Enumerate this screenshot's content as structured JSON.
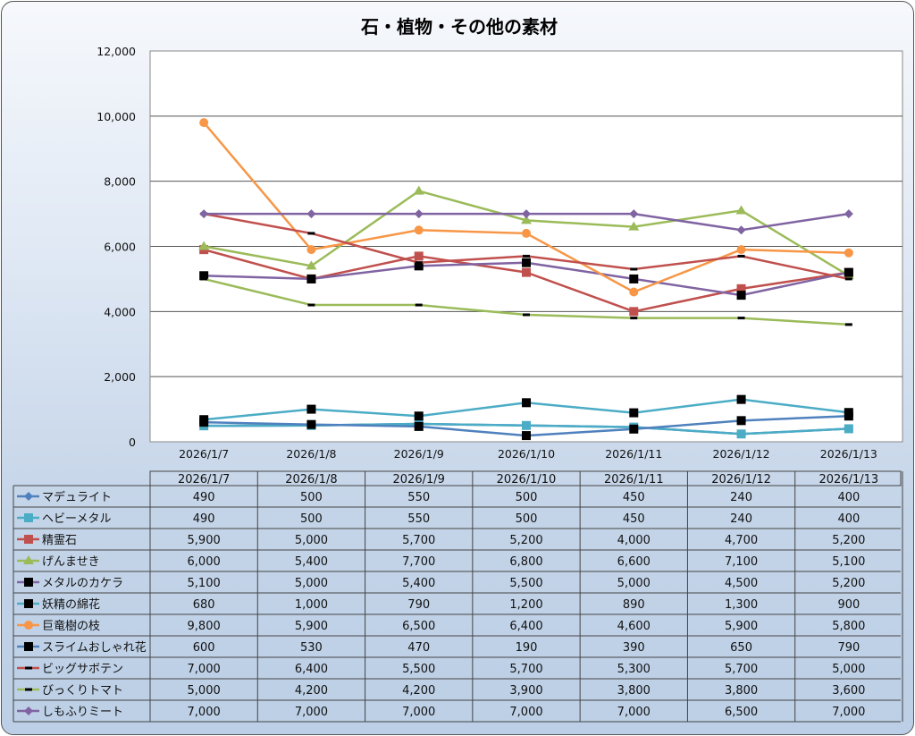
{
  "chart_data": {
    "type": "line",
    "title": "石・植物・その他の素材",
    "xlabel": "",
    "ylabel": "",
    "ylim": [
      0,
      12000
    ],
    "yticks": [
      "0",
      "2,000",
      "4,000",
      "6,000",
      "8,000",
      "10,000",
      "12,000"
    ],
    "ytick_values": [
      0,
      2000,
      4000,
      6000,
      8000,
      10000,
      12000
    ],
    "grid": true,
    "legend": "data-table-below",
    "categories": [
      "2026/1/7",
      "2026/1/8",
      "2026/1/9",
      "2026/1/10",
      "2026/1/11",
      "2026/1/12",
      "2026/1/13"
    ],
    "series": [
      {
        "name": "マデュライト",
        "color": "#4F81BD",
        "marker": "diamond",
        "values": [
          490,
          500,
          550,
          500,
          450,
          240,
          400
        ],
        "labels": [
          "490",
          "500",
          "550",
          "500",
          "450",
          "240",
          "400"
        ]
      },
      {
        "name": "ヘビーメタル",
        "color": "#4BACC6",
        "marker": "square",
        "values": [
          490,
          500,
          550,
          500,
          450,
          240,
          400
        ],
        "labels": [
          "490",
          "500",
          "550",
          "500",
          "450",
          "240",
          "400"
        ]
      },
      {
        "name": "精霊石",
        "color": "#C0504D",
        "marker": "square",
        "values": [
          5900,
          5000,
          5700,
          5200,
          4000,
          4700,
          5200
        ],
        "labels": [
          "5,900",
          "5,000",
          "5,700",
          "5,200",
          "4,000",
          "4,700",
          "5,200"
        ]
      },
      {
        "name": "げんませき",
        "color": "#9BBB59",
        "marker": "triangle",
        "values": [
          6000,
          5400,
          7700,
          6800,
          6600,
          7100,
          5100
        ],
        "labels": [
          "6,000",
          "5,400",
          "7,700",
          "6,800",
          "6,600",
          "7,100",
          "5,100"
        ]
      },
      {
        "name": "メタルのカケラ",
        "color": "#8064A2",
        "marker": "blacksquare",
        "values": [
          5100,
          5000,
          5400,
          5500,
          5000,
          4500,
          5200
        ],
        "labels": [
          "5,100",
          "5,000",
          "5,400",
          "5,500",
          "5,000",
          "4,500",
          "5,200"
        ]
      },
      {
        "name": "妖精の綿花",
        "color": "#4BACC6",
        "marker": "blacksquare",
        "values": [
          680,
          1000,
          790,
          1200,
          890,
          1300,
          900
        ],
        "labels": [
          "680",
          "1,000",
          "790",
          "1,200",
          "890",
          "1,300",
          "900"
        ]
      },
      {
        "name": "巨竜樹の枝",
        "color": "#F79646",
        "marker": "circle",
        "values": [
          9800,
          5900,
          6500,
          6400,
          4600,
          5900,
          5800
        ],
        "labels": [
          "9,800",
          "5,900",
          "6,500",
          "6,400",
          "4,600",
          "5,900",
          "5,800"
        ]
      },
      {
        "name": "スライムおしゃれ花",
        "color": "#4F81BD",
        "marker": "blacksquare",
        "values": [
          600,
          530,
          470,
          190,
          390,
          650,
          790
        ],
        "labels": [
          "600",
          "530",
          "470",
          "190",
          "390",
          "650",
          "790"
        ]
      },
      {
        "name": "ビッグサボテン",
        "color": "#C0504D",
        "marker": "dash",
        "values": [
          7000,
          6400,
          5500,
          5700,
          5300,
          5700,
          5000
        ],
        "labels": [
          "7,000",
          "6,400",
          "5,500",
          "5,700",
          "5,300",
          "5,700",
          "5,000"
        ]
      },
      {
        "name": "びっくりトマト",
        "color": "#9BBB59",
        "marker": "dash",
        "values": [
          5000,
          4200,
          4200,
          3900,
          3800,
          3800,
          3600
        ],
        "labels": [
          "5,000",
          "4,200",
          "4,200",
          "3,900",
          "3,800",
          "3,800",
          "3,600"
        ]
      },
      {
        "name": "しもふりミート",
        "color": "#8064A2",
        "marker": "diamond",
        "values": [
          7000,
          7000,
          7000,
          7000,
          7000,
          6500,
          7000
        ],
        "labels": [
          "7,000",
          "7,000",
          "7,000",
          "7,000",
          "7,000",
          "6,500",
          "7,000"
        ]
      }
    ]
  }
}
